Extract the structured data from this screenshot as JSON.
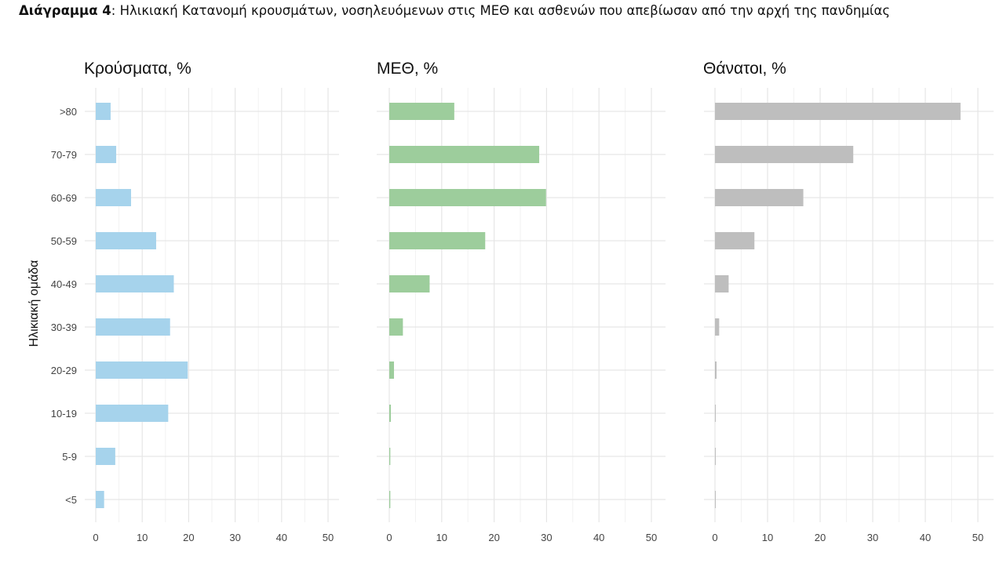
{
  "caption": {
    "prefix": "Διάγραμμα 4",
    "text": ": Ηλικιακή Κατανομή κρουσμάτων, νοσηλευόμενων στις ΜΕΘ και ασθενών που απεβίωσαν από την αρχή της πανδημίας"
  },
  "chart_data": {
    "type": "bar",
    "orientation": "horizontal",
    "ylabel": "Ηλικιακή ομάδα",
    "categories": [
      ">80",
      "70-79",
      "60-69",
      "50-59",
      "40-49",
      "30-39",
      "20-29",
      "10-19",
      "5-9",
      "<5"
    ],
    "xticks": [
      0,
      10,
      20,
      30,
      40,
      50
    ],
    "grid": true,
    "legend": "none",
    "panels": [
      {
        "title": "Κρούσματα, %",
        "color": "#a6d3ec",
        "xlim": [
          0,
          52
        ],
        "values": [
          3.2,
          4.4,
          7.6,
          13.0,
          16.8,
          16.0,
          19.8,
          15.6,
          4.2,
          1.8
        ]
      },
      {
        "title": "ΜΕΘ, %",
        "color": "#9dcd9c",
        "xlim": [
          0,
          52
        ],
        "values": [
          12.4,
          28.6,
          29.9,
          18.3,
          7.7,
          2.6,
          0.9,
          0.3,
          0.2,
          0.2
        ]
      },
      {
        "title": "Θάνατοι, %",
        "color": "#bebebe",
        "xlim": [
          0,
          52
        ],
        "values": [
          46.7,
          26.3,
          16.8,
          7.5,
          2.6,
          0.8,
          0.3,
          0.1,
          0.0,
          0.0
        ]
      }
    ]
  }
}
